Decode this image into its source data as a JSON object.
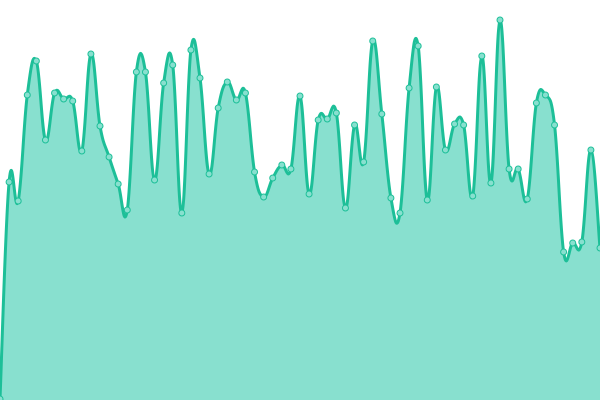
{
  "chart_data": {
    "type": "area",
    "title": "",
    "xlabel": "",
    "ylabel": "",
    "grid": false,
    "axes_visible": false,
    "ylim": [
      0,
      400
    ],
    "curve": "smooth",
    "markers": true,
    "colors": {
      "line": "#1dbf98",
      "fill": "#88e0cf",
      "marker_fill": "#88e0cf",
      "marker_stroke": "#1dbf98"
    },
    "values": [
      1,
      218,
      199,
      305,
      339,
      260,
      307,
      301,
      299,
      249,
      346,
      274,
      243,
      216,
      190,
      328,
      328,
      220,
      317,
      335,
      187,
      350,
      322,
      226,
      292,
      318,
      300,
      307,
      228,
      203,
      222,
      235,
      231,
      304,
      206,
      280,
      281,
      287,
      192,
      275,
      238,
      359,
      286,
      202,
      187,
      312,
      354,
      200,
      313,
      250,
      276,
      275,
      204,
      344,
      217,
      380,
      231,
      231,
      201,
      297,
      305,
      275,
      148,
      157,
      158,
      250,
      152
    ]
  }
}
